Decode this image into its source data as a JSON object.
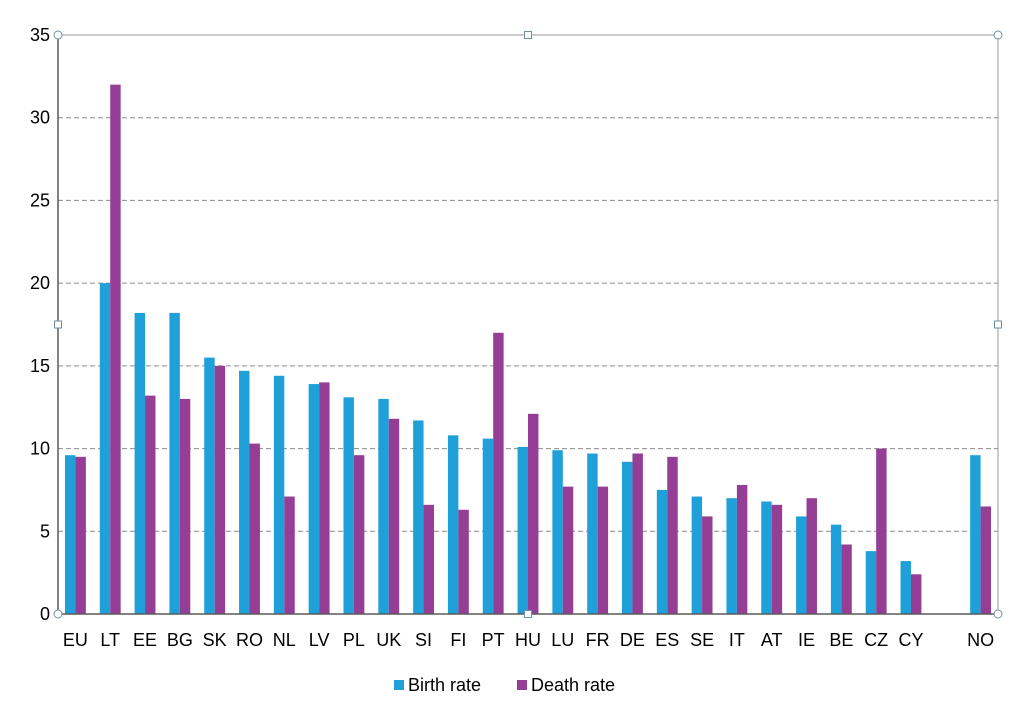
{
  "chart_data": {
    "type": "bar",
    "title": "",
    "xlabel": "",
    "ylabel": "",
    "ylim": [
      0,
      35
    ],
    "yticks": [
      0,
      5,
      10,
      15,
      20,
      25,
      30,
      35
    ],
    "grid": true,
    "legend_position": "bottom",
    "categories": [
      "EU",
      "LT",
      "EE",
      "BG",
      "SK",
      "RO",
      "NL",
      "LV",
      "PL",
      "UK",
      "SI",
      "FI",
      "PT",
      "HU",
      "LU",
      "FR",
      "DE",
      "ES",
      "SE",
      "IT",
      "AT",
      "IE",
      "BE",
      "CZ",
      "CY",
      "",
      "NO"
    ],
    "series": [
      {
        "name": "Birth rate",
        "color": "#1fa0d9",
        "values": [
          9.6,
          20.0,
          18.2,
          18.2,
          15.5,
          14.7,
          14.4,
          13.9,
          13.1,
          13.0,
          11.7,
          10.8,
          10.6,
          10.1,
          9.9,
          9.7,
          9.2,
          7.5,
          7.1,
          7.0,
          6.8,
          5.9,
          5.4,
          3.8,
          3.2,
          null,
          9.6
        ]
      },
      {
        "name": "Death rate",
        "color": "#953e95",
        "values": [
          9.5,
          32.0,
          13.2,
          13.0,
          15.0,
          10.3,
          7.1,
          14.0,
          9.6,
          11.8,
          6.6,
          6.3,
          17.0,
          12.1,
          7.7,
          7.7,
          9.7,
          9.5,
          5.9,
          7.8,
          6.6,
          7.0,
          4.2,
          10.0,
          2.4,
          null,
          6.5
        ]
      }
    ]
  }
}
